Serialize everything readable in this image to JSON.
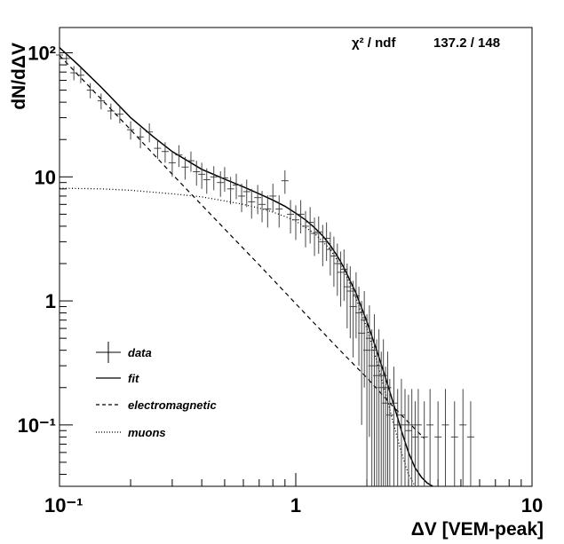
{
  "chart_data": {
    "type": "scatter",
    "title": "",
    "xlabel": "ΔV [VEM-peak]",
    "ylabel": "dN/dΔV",
    "xscale": "log",
    "yscale": "log",
    "xlim": [
      0.1,
      10
    ],
    "ylim": [
      0.032,
      160
    ],
    "x_tick_labels": [
      "10⁻¹",
      "1",
      "10"
    ],
    "y_tick_labels": [
      "10⁻¹",
      "1",
      "10",
      "10²"
    ],
    "x_tick_values": [
      0.1,
      1,
      10
    ],
    "y_tick_values": [
      0.1,
      1,
      10,
      100
    ],
    "grid": false,
    "legend_position": "bottom-left",
    "stats": {
      "label": "χ² / ndf",
      "value": "137.2 / 148"
    },
    "legend": [
      {
        "label": "data",
        "style": "errorbar"
      },
      {
        "label": "fit",
        "style": "solid"
      },
      {
        "label": "electromagnetic",
        "style": "dashed"
      },
      {
        "label": "muons",
        "style": "dotted"
      }
    ],
    "series": [
      {
        "name": "data",
        "style": "errorbar",
        "points": [
          {
            "x": 0.1,
            "y": 96,
            "e": 12
          },
          {
            "x": 0.107,
            "y": 90,
            "e": 11
          },
          {
            "x": 0.115,
            "y": 69,
            "e": 9
          },
          {
            "x": 0.123,
            "y": 66,
            "e": 9
          },
          {
            "x": 0.135,
            "y": 50,
            "e": 7
          },
          {
            "x": 0.15,
            "y": 41,
            "e": 6
          },
          {
            "x": 0.165,
            "y": 34,
            "e": 5
          },
          {
            "x": 0.18,
            "y": 32,
            "e": 5
          },
          {
            "x": 0.2,
            "y": 24,
            "e": 4
          },
          {
            "x": 0.22,
            "y": 21,
            "e": 4
          },
          {
            "x": 0.24,
            "y": 23,
            "e": 4
          },
          {
            "x": 0.26,
            "y": 17,
            "e": 3
          },
          {
            "x": 0.28,
            "y": 16,
            "e": 3
          },
          {
            "x": 0.3,
            "y": 13,
            "e": 3
          },
          {
            "x": 0.32,
            "y": 15,
            "e": 3
          },
          {
            "x": 0.34,
            "y": 12,
            "e": 2.5
          },
          {
            "x": 0.36,
            "y": 13.5,
            "e": 2.5
          },
          {
            "x": 0.38,
            "y": 11,
            "e": 2.5
          },
          {
            "x": 0.4,
            "y": 10.5,
            "e": 2.5
          },
          {
            "x": 0.42,
            "y": 9.5,
            "e": 2.2
          },
          {
            "x": 0.45,
            "y": 10,
            "e": 2.2
          },
          {
            "x": 0.48,
            "y": 9,
            "e": 2.1
          },
          {
            "x": 0.5,
            "y": 9.8,
            "e": 2.2
          },
          {
            "x": 0.53,
            "y": 8,
            "e": 2
          },
          {
            "x": 0.56,
            "y": 8.6,
            "e": 2
          },
          {
            "x": 0.59,
            "y": 7,
            "e": 1.8
          },
          {
            "x": 0.62,
            "y": 7.6,
            "e": 1.9
          },
          {
            "x": 0.65,
            "y": 6.3,
            "e": 1.7
          },
          {
            "x": 0.69,
            "y": 6.8,
            "e": 1.8
          },
          {
            "x": 0.72,
            "y": 6,
            "e": 1.7
          },
          {
            "x": 0.76,
            "y": 5.5,
            "e": 1.6
          },
          {
            "x": 0.8,
            "y": 7,
            "e": 1.8
          },
          {
            "x": 0.85,
            "y": 5.5,
            "e": 1.6
          },
          {
            "x": 0.9,
            "y": 9.3,
            "e": 2
          },
          {
            "x": 0.95,
            "y": 5,
            "e": 1.5
          },
          {
            "x": 1.0,
            "y": 4.5,
            "e": 1.4
          },
          {
            "x": 1.05,
            "y": 5,
            "e": 1.5
          },
          {
            "x": 1.1,
            "y": 4,
            "e": 1.3
          },
          {
            "x": 1.15,
            "y": 4.3,
            "e": 1.4
          },
          {
            "x": 1.2,
            "y": 3.5,
            "e": 1.2
          },
          {
            "x": 1.25,
            "y": 3.6,
            "e": 1.2
          },
          {
            "x": 1.3,
            "y": 3,
            "e": 1.1
          },
          {
            "x": 1.35,
            "y": 3.2,
            "e": 1.1
          },
          {
            "x": 1.4,
            "y": 2.6,
            "e": 1
          },
          {
            "x": 1.45,
            "y": 2.3,
            "e": 1
          },
          {
            "x": 1.5,
            "y": 2,
            "e": 0.9
          },
          {
            "x": 1.55,
            "y": 1.7,
            "e": 0.8
          },
          {
            "x": 1.6,
            "y": 1.8,
            "e": 0.8
          },
          {
            "x": 1.65,
            "y": 1.3,
            "e": 0.7
          },
          {
            "x": 1.7,
            "y": 1.2,
            "e": 0.7
          },
          {
            "x": 1.75,
            "y": 0.9,
            "e": 0.55
          },
          {
            "x": 1.8,
            "y": 1.1,
            "e": 0.6
          },
          {
            "x": 1.85,
            "y": 0.8,
            "e": 0.5
          },
          {
            "x": 1.9,
            "y": 0.55,
            "e": 0.45
          },
          {
            "x": 1.95,
            "y": 0.7,
            "e": 0.5
          },
          {
            "x": 2.0,
            "y": 0.4,
            "e": 0.38
          },
          {
            "x": 2.05,
            "y": 0.5,
            "e": 0.42
          },
          {
            "x": 2.1,
            "y": 0.3,
            "e": 0.29
          },
          {
            "x": 2.15,
            "y": 0.4,
            "e": 0.38
          },
          {
            "x": 2.2,
            "y": 0.25,
            "e": 0.24
          },
          {
            "x": 2.25,
            "y": 0.3,
            "e": 0.29
          },
          {
            "x": 2.3,
            "y": 0.2,
            "e": 0.19
          },
          {
            "x": 2.35,
            "y": 0.25,
            "e": 0.24
          },
          {
            "x": 2.4,
            "y": 0.15,
            "e": 0.145
          },
          {
            "x": 2.45,
            "y": 0.2,
            "e": 0.19
          },
          {
            "x": 2.5,
            "y": 0.12,
            "e": 0.115
          },
          {
            "x": 2.6,
            "y": 0.15,
            "e": 0.145
          },
          {
            "x": 2.7,
            "y": 0.1,
            "e": 0.095
          },
          {
            "x": 2.8,
            "y": 0.12,
            "e": 0.115
          },
          {
            "x": 2.9,
            "y": 0.1,
            "e": 0.095
          },
          {
            "x": 3.0,
            "y": 0.09,
            "e": 0.085
          },
          {
            "x": 3.1,
            "y": 0.1,
            "e": 0.095
          },
          {
            "x": 3.2,
            "y": 0.08,
            "e": 0.075
          },
          {
            "x": 3.3,
            "y": 0.1,
            "e": 0.095
          },
          {
            "x": 3.5,
            "y": 0.08,
            "e": 0.075
          },
          {
            "x": 3.7,
            "y": 0.1,
            "e": 0.095
          },
          {
            "x": 4.0,
            "y": 0.08,
            "e": 0.075
          },
          {
            "x": 4.3,
            "y": 0.1,
            "e": 0.095
          },
          {
            "x": 4.7,
            "y": 0.08,
            "e": 0.075
          },
          {
            "x": 5.1,
            "y": 0.1,
            "e": 0.095
          },
          {
            "x": 5.5,
            "y": 0.08,
            "e": 0.075
          }
        ]
      },
      {
        "name": "fit",
        "style": "solid",
        "x": [
          0.1,
          0.12,
          0.15,
          0.2,
          0.25,
          0.3,
          0.4,
          0.5,
          0.6,
          0.7,
          0.8,
          0.9,
          1.0,
          1.1,
          1.2,
          1.3,
          1.4,
          1.5,
          1.6,
          1.8,
          2.0,
          2.2,
          2.4,
          2.6,
          2.8,
          3.0,
          3.2,
          3.4,
          3.6,
          3.8
        ],
        "y": [
          110,
          80,
          53,
          30,
          21,
          16,
          11.5,
          9.6,
          8.3,
          7.3,
          6.5,
          5.8,
          5.1,
          4.5,
          3.9,
          3.35,
          2.8,
          2.3,
          1.85,
          1.15,
          0.68,
          0.4,
          0.24,
          0.145,
          0.09,
          0.06,
          0.045,
          0.038,
          0.034,
          0.032
        ]
      },
      {
        "name": "electromagnetic",
        "style": "dashed",
        "x": [
          0.1,
          0.2,
          0.3,
          0.5,
          0.7,
          1.0,
          1.5,
          2.0,
          2.5,
          3.0,
          3.5
        ],
        "y": [
          95,
          24,
          10.5,
          3.8,
          1.95,
          0.95,
          0.42,
          0.24,
          0.15,
          0.105,
          0.078
        ]
      },
      {
        "name": "muons",
        "style": "dotted",
        "x": [
          0.1,
          0.15,
          0.2,
          0.3,
          0.4,
          0.5,
          0.6,
          0.7,
          0.8,
          0.9,
          1.0,
          1.2,
          1.4,
          1.6,
          1.8,
          2.0,
          2.2,
          2.4,
          2.6,
          2.8,
          3.0,
          3.2
        ],
        "y": [
          8.1,
          8.0,
          7.8,
          7.3,
          6.9,
          6.4,
          6.0,
          5.6,
          5.2,
          4.8,
          4.4,
          3.5,
          2.6,
          1.75,
          1.05,
          0.6,
          0.33,
          0.18,
          0.1,
          0.06,
          0.04,
          0.032
        ]
      }
    ]
  }
}
